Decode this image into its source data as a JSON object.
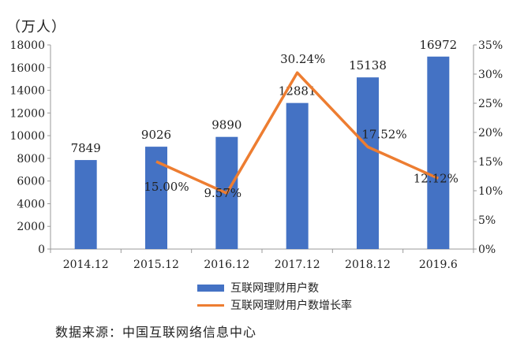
{
  "unit_label": "（万人）",
  "source": "数据来源：中国互联网络信息中心",
  "legend": {
    "bar": "互联网理财用户数",
    "line": "互联网理财用户数增长率"
  },
  "colors": {
    "bar": "#4472C4",
    "line": "#ED7D31",
    "axis": "#999999"
  },
  "chart_data": {
    "type": "bar+line",
    "categories": [
      "2014.12",
      "2015.12",
      "2016.12",
      "2017.12",
      "2018.12",
      "2019.6"
    ],
    "series": [
      {
        "name": "互联网理财用户数",
        "type": "bar",
        "axis": "left",
        "values": [
          7849,
          9026,
          9890,
          12881,
          15138,
          16972
        ],
        "labels": [
          "7849",
          "9026",
          "9890",
          "12881",
          "15138",
          "16972"
        ]
      },
      {
        "name": "互联网理财用户数增长率",
        "type": "line",
        "axis": "right",
        "values": [
          null,
          15.0,
          9.57,
          30.24,
          17.52,
          12.12
        ],
        "labels": [
          null,
          "15.00%",
          "9.57%",
          "30.24%",
          "17.52%",
          "12.12%"
        ]
      }
    ],
    "y_left": {
      "min": 0,
      "max": 18000,
      "step": 2000
    },
    "y_right": {
      "min": 0,
      "max": 35,
      "step": 5,
      "suffix": "%"
    },
    "grid": false,
    "legend_position": "bottom"
  }
}
